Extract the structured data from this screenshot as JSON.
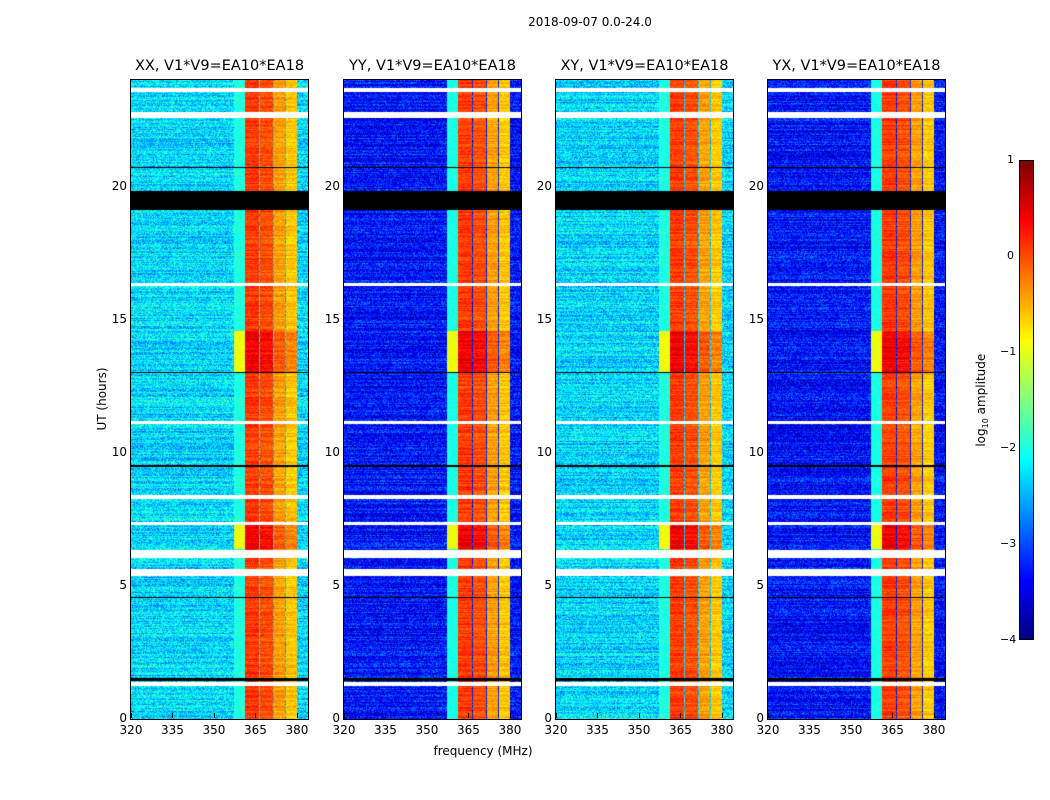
{
  "chart_data": {
    "type": "heatmap",
    "title": "2018-09-07 0.0-24.0",
    "xlabel": "frequency (MHz)",
    "ylabel": "UT (hours)",
    "xlim": [
      320,
      384
    ],
    "ylim": [
      0,
      24
    ],
    "xticks": [
      "320",
      "335",
      "350",
      "365",
      "380"
    ],
    "yticks": [
      "0",
      "5",
      "10",
      "15",
      "20"
    ],
    "panels": [
      {
        "title": "XX, V1*V9=EA10*EA18",
        "background_log_amp": -2.3
      },
      {
        "title": "YY, V1*V9=EA10*EA18",
        "background_log_amp": -3.3
      },
      {
        "title": "XY, V1*V9=EA10*EA18",
        "background_log_amp": -2.3
      },
      {
        "title": "YX, V1*V9=EA10*EA18",
        "background_log_amp": -3.3
      }
    ],
    "subbands_mhz": [
      [
        361,
        366,
        0.1
      ],
      [
        366.5,
        371,
        0.0
      ],
      [
        371.5,
        375.5,
        -0.4
      ],
      [
        376,
        380,
        -0.6
      ]
    ],
    "flagged_white_hours": [
      [
        23.55,
        23.7
      ],
      [
        22.6,
        22.8
      ],
      [
        6.05,
        6.35
      ],
      [
        5.4,
        5.65
      ],
      [
        1.25,
        1.4
      ],
      [
        11.1,
        11.2
      ],
      [
        16.3,
        16.4
      ],
      [
        8.3,
        8.45
      ],
      [
        7.3,
        7.4
      ]
    ],
    "flagged_black_hours": [
      [
        19.15,
        19.85
      ],
      [
        1.45,
        1.55
      ],
      [
        4.55,
        4.6
      ],
      [
        13.0,
        13.05
      ],
      [
        9.5,
        9.55
      ],
      [
        20.7,
        20.75
      ]
    ],
    "colorbar": {
      "label": "log10 amplitude",
      "label_main": "log",
      "label_sub": "10",
      "label_rest": " amplitude",
      "range": [
        -4,
        1
      ],
      "ticks": [
        "1",
        "0",
        "−1",
        "−2",
        "−3",
        "−4"
      ],
      "colormap": "jet"
    }
  }
}
